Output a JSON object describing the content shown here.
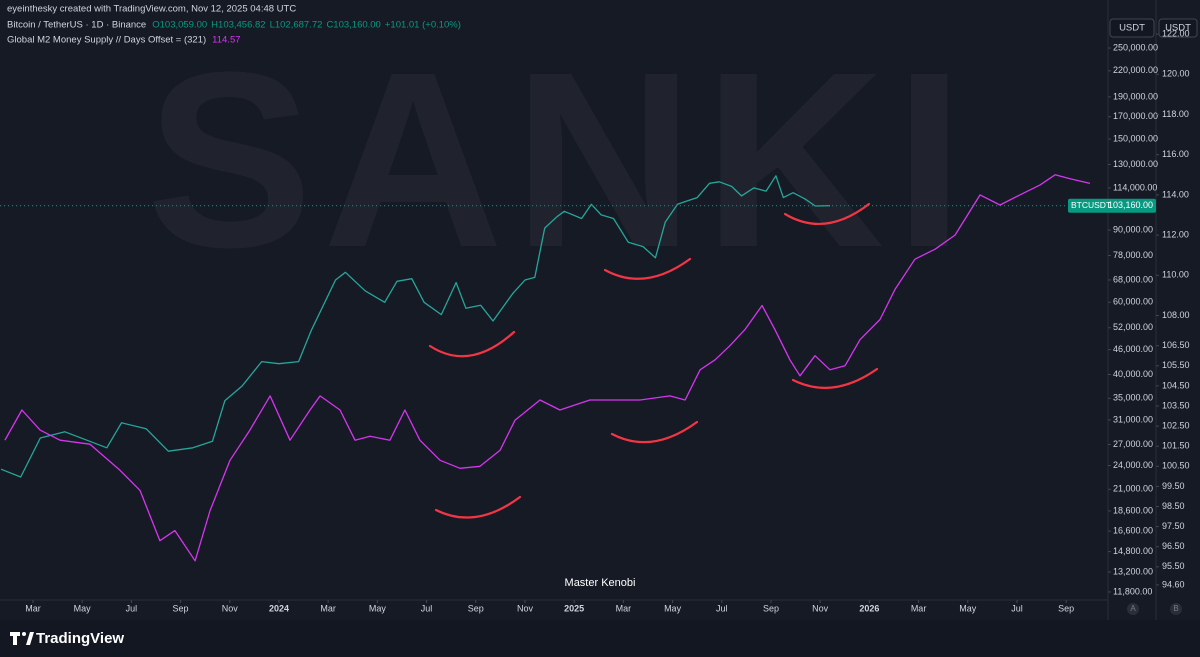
{
  "header": {
    "credit": "eyeinthesky created with TradingView.com, Nov 12, 2025 04:48 UTC",
    "ohlc": [
      "O103,059.00",
      "H103,456.82",
      "L102,687.72",
      "C103,160.00",
      "+101.01 (+0.10%)"
    ],
    "currency_left": "USDT",
    "currency_right": "USDT"
  },
  "watermark": "SANKI",
  "annotation": "Master Kenobi",
  "scale_buttons": [
    "A",
    "B"
  ],
  "footer": {
    "brand": "TradingView"
  },
  "chart_data": {
    "type": "line",
    "xlim": [
      0.66,
      45.7
    ],
    "xticks": [
      {
        "value": 2,
        "label": "Mar"
      },
      {
        "value": 4,
        "label": "May"
      },
      {
        "value": 6,
        "label": "Jul"
      },
      {
        "value": 8,
        "label": "Sep"
      },
      {
        "value": 10,
        "label": "Nov"
      },
      {
        "value": 12,
        "label": "2024"
      },
      {
        "value": 14,
        "label": "Mar"
      },
      {
        "value": 16,
        "label": "May"
      },
      {
        "value": 18,
        "label": "Jul"
      },
      {
        "value": 20,
        "label": "Sep"
      },
      {
        "value": 22,
        "label": "Nov"
      },
      {
        "value": 24,
        "label": "2025"
      },
      {
        "value": 26,
        "label": "Mar"
      },
      {
        "value": 28,
        "label": "May"
      },
      {
        "value": 30,
        "label": "Jul"
      },
      {
        "value": 32,
        "label": "Sep"
      },
      {
        "value": 34,
        "label": "Nov"
      },
      {
        "value": 36,
        "label": "2026"
      },
      {
        "value": 38,
        "label": "Mar"
      },
      {
        "value": 40,
        "label": "May"
      },
      {
        "value": 42,
        "label": "Jul"
      },
      {
        "value": 44,
        "label": "Sep"
      }
    ],
    "ylim": [
      11280,
      292600
    ],
    "ylog": true,
    "yticks": [
      {
        "value": 250000,
        "label": "250,000.00"
      },
      {
        "value": 220000,
        "label": "220,000.00"
      },
      {
        "value": 190000,
        "label": "190,000.00"
      },
      {
        "value": 170000,
        "label": "170,000.00"
      },
      {
        "value": 150000,
        "label": "150,000.00"
      },
      {
        "value": 130000,
        "label": "130,000.00"
      },
      {
        "value": 114000,
        "label": "114,000.00"
      },
      {
        "value": 90000,
        "label": "90,000.00"
      },
      {
        "value": 78000,
        "label": "78,000.00"
      },
      {
        "value": 68000,
        "label": "68,000.00"
      },
      {
        "value": 60000,
        "label": "60,000.00"
      },
      {
        "value": 52000,
        "label": "52,000.00"
      },
      {
        "value": 46000,
        "label": "46,000.00"
      },
      {
        "value": 40000,
        "label": "40,000.00"
      },
      {
        "value": 35000,
        "label": "35,000.00"
      },
      {
        "value": 31000,
        "label": "31,000.00"
      },
      {
        "value": 27000,
        "label": "27,000.00"
      },
      {
        "value": 24000,
        "label": "24,000.00"
      },
      {
        "value": 21000,
        "label": "21,000.00"
      },
      {
        "value": 18600,
        "label": "18,600.00"
      },
      {
        "value": 16600,
        "label": "16,600.00"
      },
      {
        "value": 14800,
        "label": "14,800.00"
      },
      {
        "value": 13200,
        "label": "13,200.00"
      },
      {
        "value": 11800,
        "label": "11,800.00"
      }
    ],
    "y2lim": [
      93.85,
      122.7
    ],
    "y2ticks": [
      {
        "value": 122,
        "label": "122.00"
      },
      {
        "value": 120,
        "label": "120.00"
      },
      {
        "value": 118,
        "label": "118.00"
      },
      {
        "value": 116,
        "label": "116.00"
      },
      {
        "value": 114,
        "label": "114.00"
      },
      {
        "value": 112,
        "label": "112.00"
      },
      {
        "value": 110,
        "label": "110.00"
      },
      {
        "value": 108,
        "label": "108.00"
      },
      {
        "value": 106.5,
        "label": "106.50"
      },
      {
        "value": 105.5,
        "label": "105.50"
      },
      {
        "value": 104.5,
        "label": "104.50"
      },
      {
        "value": 103.5,
        "label": "103.50"
      },
      {
        "value": 102.5,
        "label": "102.50"
      },
      {
        "value": 101.5,
        "label": "101.50"
      },
      {
        "value": 100.5,
        "label": "100.50"
      },
      {
        "value": 99.5,
        "label": "99.50"
      },
      {
        "value": 98.5,
        "label": "98.50"
      },
      {
        "value": 97.5,
        "label": "97.50"
      },
      {
        "value": 96.5,
        "label": "96.50"
      },
      {
        "value": 95.5,
        "label": "95.50"
      },
      {
        "value": 94.6,
        "label": "94.60"
      }
    ],
    "price_label": {
      "name": "BTCUSDT",
      "value": 103160,
      "label": "103,160.00",
      "color": "#089981"
    },
    "series": [
      {
        "name": "Bitcoin / TetherUS · 1D · Binance",
        "color": "#26a69a",
        "axis": "y",
        "x": [
          0.7,
          1.5,
          2.3,
          3.3,
          4.3,
          5.0,
          5.6,
          6.6,
          7.5,
          8.5,
          9.3,
          9.8,
          10.5,
          11.3,
          12.0,
          12.8,
          13.3,
          14.3,
          14.7,
          15.5,
          16.3,
          16.8,
          17.4,
          17.9,
          18.6,
          19.2,
          19.6,
          20.2,
          20.7,
          21.5,
          22.0,
          22.4,
          22.8,
          23.3,
          23.6,
          24.3,
          24.7,
          25.1,
          25.6,
          26.2,
          26.8,
          27.3,
          27.7,
          28.2,
          28.6,
          29.0,
          29.5,
          29.9,
          30.4,
          30.8,
          31.3,
          31.8,
          32.2,
          32.5,
          32.9,
          33.4,
          33.8,
          34.4
        ],
        "values": [
          23500,
          22500,
          28000,
          29000,
          27500,
          26500,
          30500,
          29500,
          26000,
          26500,
          27500,
          34500,
          37500,
          43000,
          42500,
          43000,
          51000,
          68000,
          71000,
          64000,
          60000,
          67500,
          68500,
          60000,
          56000,
          67000,
          58000,
          59000,
          54000,
          63000,
          68000,
          69000,
          91000,
          97000,
          100000,
          96000,
          104000,
          98000,
          96000,
          84000,
          82000,
          77000,
          94000,
          104000,
          106000,
          108000,
          117000,
          118000,
          115000,
          109000,
          114000,
          112000,
          122000,
          108000,
          111000,
          107000,
          103000,
          103160
        ]
      },
      {
        "name": "Global M2 Money Supply // Days Offset = (321)",
        "color": "#d535f0",
        "axis": "y2",
        "x": [
          0.86,
          1.55,
          2.29,
          3.1,
          4.32,
          5.54,
          6.35,
          7.16,
          7.77,
          8.59,
          9.2,
          10.01,
          10.82,
          11.64,
          12.45,
          13.26,
          13.67,
          14.48,
          15.09,
          15.7,
          16.51,
          17.12,
          17.73,
          18.55,
          19.36,
          20.17,
          20.99,
          21.6,
          22.61,
          23.42,
          24.64,
          25.46,
          26.68,
          27.89,
          28.51,
          29.12,
          29.73,
          30.33,
          30.94,
          31.64,
          32.16,
          32.77,
          33.18,
          33.79,
          34.4,
          35.01,
          35.62,
          36.43,
          37.04,
          37.85,
          38.67,
          39.48,
          40.5,
          41.31,
          42.12,
          42.94,
          43.55,
          44.16,
          44.97
        ],
        "values": [
          101.8,
          103.3,
          102.3,
          101.8,
          101.6,
          100.3,
          99.3,
          96.8,
          97.3,
          95.8,
          98.3,
          100.8,
          102.3,
          104.0,
          101.8,
          103.3,
          104.0,
          103.3,
          101.8,
          102.0,
          101.8,
          103.3,
          101.8,
          100.8,
          100.4,
          100.5,
          101.3,
          102.8,
          103.8,
          103.3,
          103.8,
          103.8,
          103.8,
          104.0,
          103.8,
          105.3,
          105.8,
          106.5,
          107.3,
          108.5,
          107.3,
          105.8,
          105.0,
          106.0,
          105.3,
          105.5,
          106.8,
          107.8,
          109.3,
          110.8,
          111.3,
          112.0,
          114.0,
          113.5,
          114.0,
          114.5,
          115.0,
          114.8,
          114.57
        ]
      }
    ]
  }
}
